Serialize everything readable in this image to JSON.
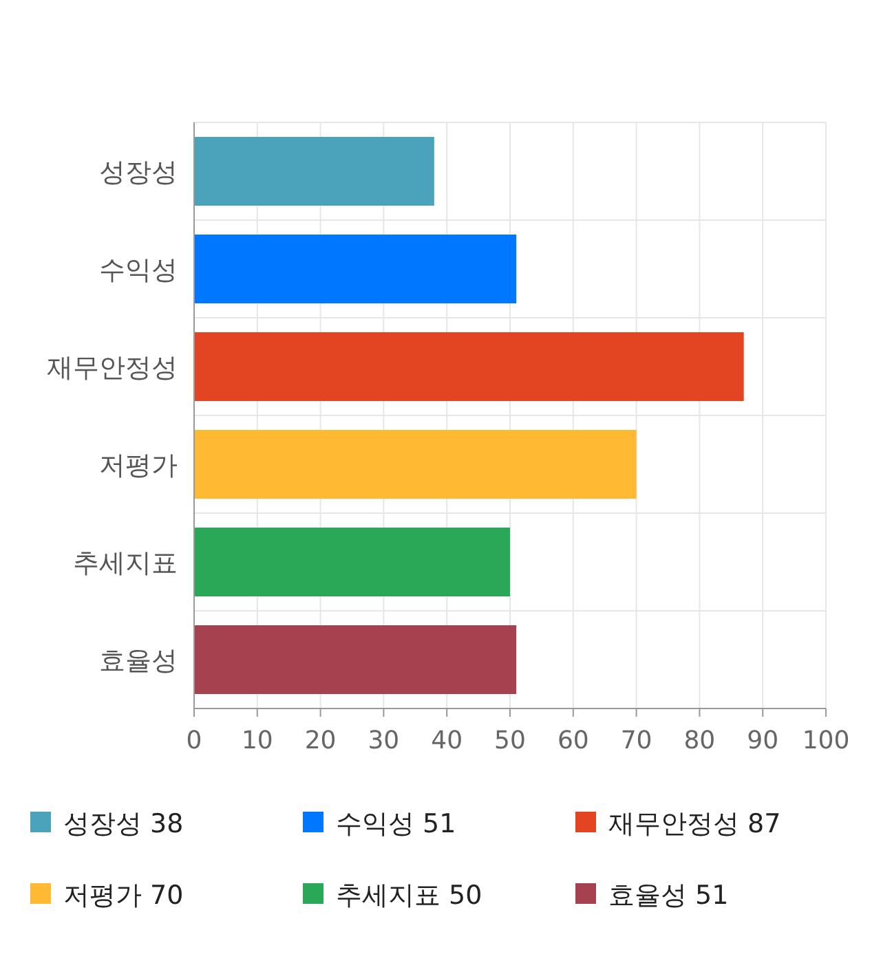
{
  "chart_data": {
    "type": "bar",
    "orientation": "horizontal",
    "categories": [
      "성장성",
      "수익성",
      "재무안정성",
      "저평가",
      "추세지표",
      "효율성"
    ],
    "series": [
      {
        "name": "성장성 38",
        "color": "#4aa3ba",
        "values": [
          38,
          null,
          null,
          null,
          null,
          null
        ]
      },
      {
        "name": "수익성 51",
        "color": "#0077ff",
        "values": [
          null,
          51,
          null,
          null,
          null,
          null
        ]
      },
      {
        "name": "재무안정성 87",
        "color": "#e34523",
        "values": [
          null,
          null,
          87,
          null,
          null,
          null
        ]
      },
      {
        "name": "저평가 70",
        "color": "#ffb932",
        "values": [
          null,
          null,
          null,
          70,
          null,
          null
        ]
      },
      {
        "name": "추세지표 50",
        "color": "#2aa857",
        "values": [
          null,
          null,
          null,
          null,
          50,
          null
        ]
      },
      {
        "name": "효율성 51",
        "color": "#a6424f",
        "values": [
          null,
          null,
          null,
          null,
          null,
          51
        ]
      }
    ],
    "xlim": [
      0,
      100
    ],
    "xticks": [
      0,
      10,
      20,
      30,
      40,
      50,
      60,
      70,
      80,
      90,
      100
    ],
    "grid": true,
    "legend": "bottom"
  }
}
